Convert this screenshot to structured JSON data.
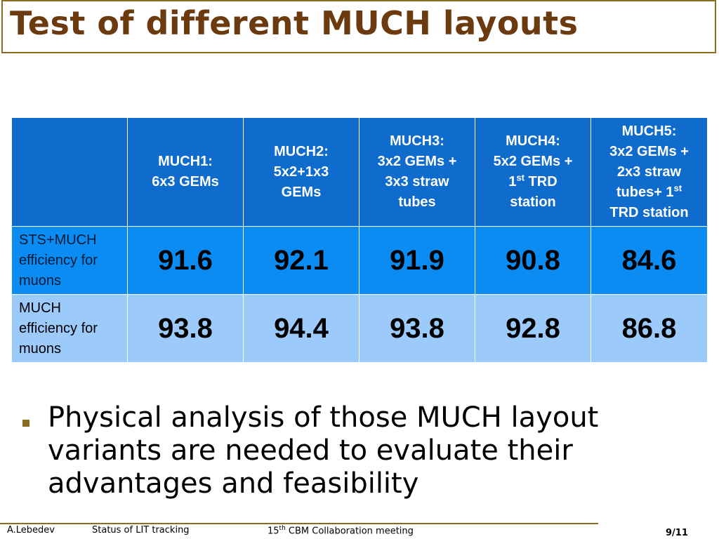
{
  "slide": {
    "title": "Test of different MUCH layouts"
  },
  "table": {
    "corner": "",
    "columns": [
      {
        "line1": "MUCH1:",
        "line2": "6x3 GEMs"
      },
      {
        "line1": "MUCH2:",
        "line2": "5x2+1x3",
        "line3": "GEMs"
      },
      {
        "line1": "MUCH3:",
        "line2": "3x2 GEMs +",
        "line3": "3x3 straw",
        "line4": "tubes"
      },
      {
        "line1": "MUCH4:",
        "line2": "5x2 GEMs +",
        "line3a": "1",
        "line3sup": "st",
        "line3b": " TRD",
        "line4": "station"
      },
      {
        "line1": "MUCH5:",
        "line2": "3x2 GEMs +",
        "line3": "2x3 straw",
        "line4a": "tubes+ 1",
        "line4sup": "st",
        "line5": "TRD station"
      }
    ],
    "rows": [
      {
        "label_l1": "STS+MUCH",
        "label_l2": "efficiency for",
        "label_l3": "muons",
        "values": [
          "91.6",
          "92.1",
          "91.9",
          "90.8",
          "84.6"
        ]
      },
      {
        "label_l1": "MUCH",
        "label_l2": "efficiency for",
        "label_l3": "muons",
        "values": [
          "93.8",
          "94.4",
          "93.8",
          "92.8",
          "86.8"
        ]
      }
    ]
  },
  "bullet": {
    "text": "Physical analysis of those MUCH layout variants are needed to evaluate their advantages and feasibility"
  },
  "footer": {
    "author": "A.Lebedev",
    "topic": "Status of LIT tracking",
    "meeting_num": "15",
    "meeting_sup": "th",
    "meeting_rest": " CBM Collaboration meeting",
    "page": "9/11"
  },
  "colors": {
    "title": "#6b3a0e",
    "border": "#8a6d1f",
    "header_bg": "#0f6bcc",
    "row1_bg": "#0a8cf3",
    "row2_bg": "#9ccafb"
  }
}
